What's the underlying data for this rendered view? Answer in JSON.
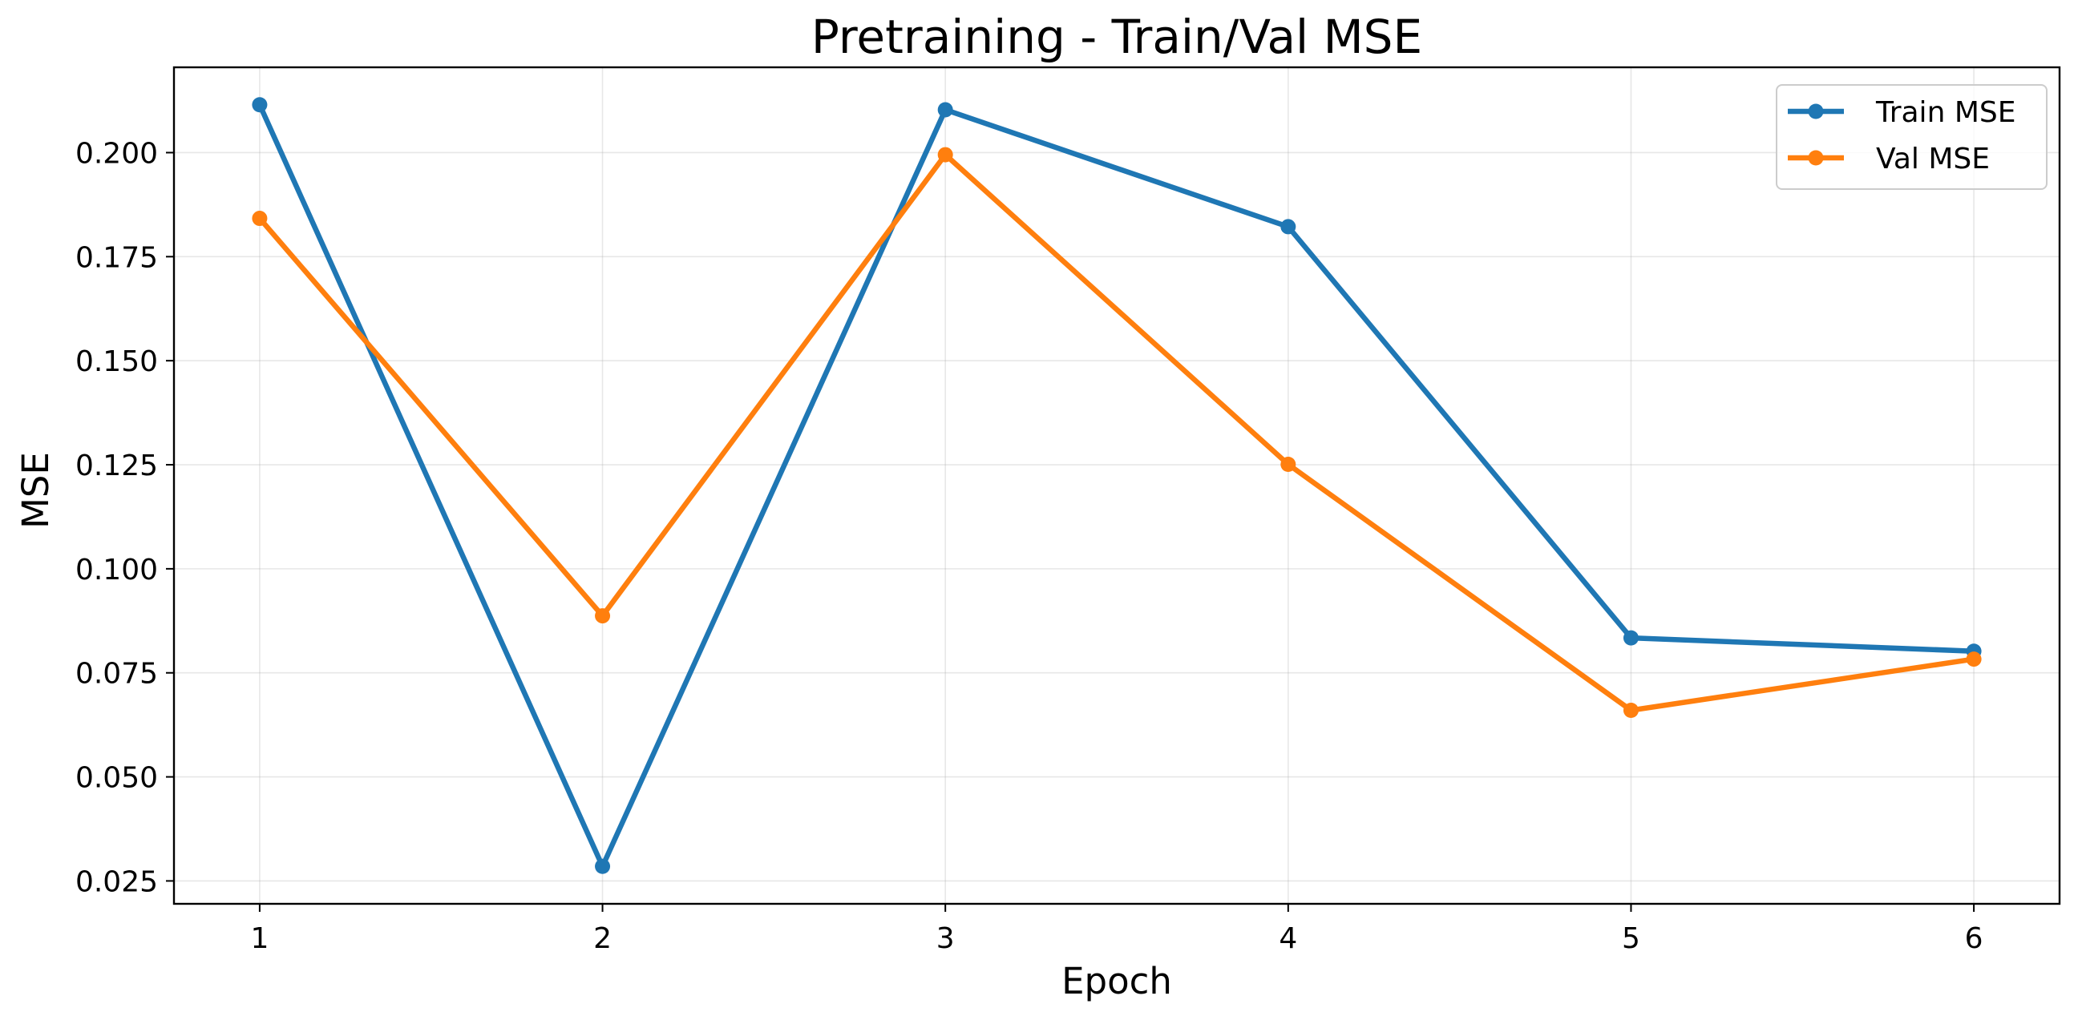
{
  "chart_data": {
    "type": "line",
    "title": "Pretraining - Train/Val MSE",
    "xlabel": "Epoch",
    "ylabel": "MSE",
    "x": [
      1,
      2,
      3,
      4,
      5,
      6
    ],
    "xlim": [
      0.75,
      6.25
    ],
    "ylim": [
      0.0195,
      0.2205
    ],
    "xticks": [
      1,
      2,
      3,
      4,
      5,
      6
    ],
    "yticks": [
      0.025,
      0.05,
      0.075,
      0.1,
      0.125,
      0.15,
      0.175,
      0.2
    ],
    "ytick_labels": [
      "0.025",
      "0.050",
      "0.075",
      "0.100",
      "0.125",
      "0.150",
      "0.175",
      "0.200"
    ],
    "grid": true,
    "legend_position": "top-right",
    "series": [
      {
        "name": "Train MSE",
        "color": "#1f77b4",
        "marker": "circle",
        "values": [
          0.2115,
          0.0285,
          0.2103,
          0.1822,
          0.0834,
          0.0802
        ]
      },
      {
        "name": "Val MSE",
        "color": "#ff7f0e",
        "marker": "circle",
        "values": [
          0.1842,
          0.0887,
          0.1995,
          0.1251,
          0.066,
          0.0783
        ]
      }
    ]
  }
}
